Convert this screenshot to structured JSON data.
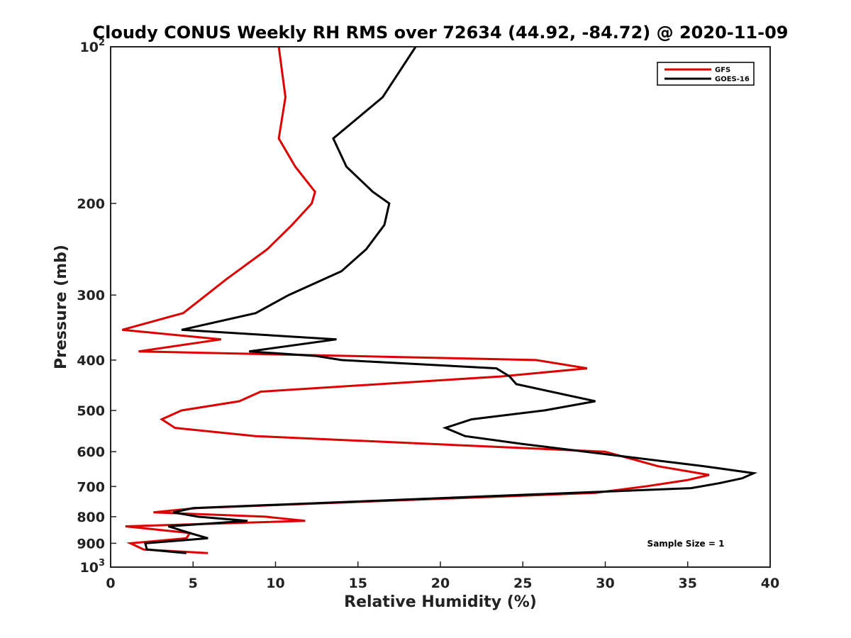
{
  "chart_data": {
    "type": "line",
    "title": "Cloudy CONUS Weekly RH RMS over 72634 (44.92, -84.72) @ 2020-11-09",
    "xlabel": "Relative Humidity (%)",
    "ylabel": "Pressure (mb)",
    "xlim": [
      0,
      40
    ],
    "ylim": [
      1000,
      100
    ],
    "y_scale": "log",
    "y_reversed": true,
    "grid": false,
    "legend_position": "top-right",
    "x_ticks": [
      0,
      5,
      10,
      15,
      20,
      25,
      30,
      35,
      40
    ],
    "x_tick_labels": [
      "0",
      "5",
      "10",
      "15",
      "20",
      "25",
      "30",
      "35",
      "40"
    ],
    "y_ticks": [
      100,
      200,
      300,
      400,
      500,
      600,
      700,
      800,
      900,
      1000
    ],
    "y_tick_labels": [
      {
        "base": "10",
        "exp": "2"
      },
      {
        "base": "200",
        "exp": ""
      },
      {
        "base": "300",
        "exp": ""
      },
      {
        "base": "400",
        "exp": ""
      },
      {
        "base": "500",
        "exp": ""
      },
      {
        "base": "600",
        "exp": ""
      },
      {
        "base": "700",
        "exp": ""
      },
      {
        "base": "800",
        "exp": ""
      },
      {
        "base": "900",
        "exp": ""
      },
      {
        "base": "10",
        "exp": "3"
      }
    ],
    "annotation": "Sample Size = 1",
    "series": [
      {
        "name": "GFS",
        "color": "#dd0000",
        "points": [
          [
            10.2,
            100
          ],
          [
            10.6,
            125
          ],
          [
            10.2,
            150
          ],
          [
            11.2,
            170
          ],
          [
            12.4,
            190
          ],
          [
            12.2,
            200
          ],
          [
            11.0,
            220
          ],
          [
            9.5,
            245
          ],
          [
            7.0,
            280
          ],
          [
            5.8,
            300
          ],
          [
            4.4,
            325
          ],
          [
            0.7,
            350
          ],
          [
            6.7,
            365
          ],
          [
            1.7,
            385
          ],
          [
            25.8,
            400
          ],
          [
            28.9,
            415
          ],
          [
            23.7,
            430
          ],
          [
            9.1,
            460
          ],
          [
            7.8,
            480
          ],
          [
            4.3,
            500
          ],
          [
            3.1,
            520
          ],
          [
            3.9,
            540
          ],
          [
            8.8,
            560
          ],
          [
            30.0,
            600
          ],
          [
            33.2,
            640
          ],
          [
            36.3,
            665
          ],
          [
            35.0,
            680
          ],
          [
            32.4,
            700
          ],
          [
            29.4,
            720
          ],
          [
            5.2,
            770
          ],
          [
            2.6,
            785
          ],
          [
            9.4,
            800
          ],
          [
            11.8,
            815
          ],
          [
            0.9,
            835
          ],
          [
            4.8,
            860
          ],
          [
            4.6,
            880
          ],
          [
            1.2,
            900
          ],
          [
            2.0,
            925
          ],
          [
            5.9,
            940
          ]
        ]
      },
      {
        "name": "GOES-16",
        "color": "#000000",
        "points": [
          [
            18.5,
            100
          ],
          [
            16.5,
            125
          ],
          [
            13.5,
            150
          ],
          [
            14.3,
            170
          ],
          [
            15.9,
            190
          ],
          [
            16.9,
            200
          ],
          [
            16.6,
            220
          ],
          [
            15.5,
            245
          ],
          [
            14.0,
            270
          ],
          [
            10.8,
            300
          ],
          [
            8.8,
            325
          ],
          [
            4.3,
            350
          ],
          [
            13.7,
            365
          ],
          [
            8.4,
            385
          ],
          [
            12.5,
            393
          ],
          [
            14.0,
            400
          ],
          [
            23.4,
            415
          ],
          [
            24.2,
            430
          ],
          [
            24.6,
            445
          ],
          [
            29.4,
            480
          ],
          [
            26.3,
            500
          ],
          [
            21.9,
            520
          ],
          [
            20.3,
            540
          ],
          [
            21.5,
            560
          ],
          [
            25.0,
            580
          ],
          [
            36.0,
            640
          ],
          [
            39.0,
            660
          ],
          [
            38.3,
            675
          ],
          [
            36.9,
            690
          ],
          [
            35.2,
            705
          ],
          [
            5.0,
            770
          ],
          [
            3.8,
            785
          ],
          [
            5.3,
            800
          ],
          [
            8.3,
            815
          ],
          [
            3.5,
            835
          ],
          [
            4.8,
            860
          ],
          [
            5.9,
            880
          ],
          [
            2.1,
            900
          ],
          [
            2.2,
            925
          ],
          [
            4.6,
            940
          ]
        ]
      }
    ]
  }
}
